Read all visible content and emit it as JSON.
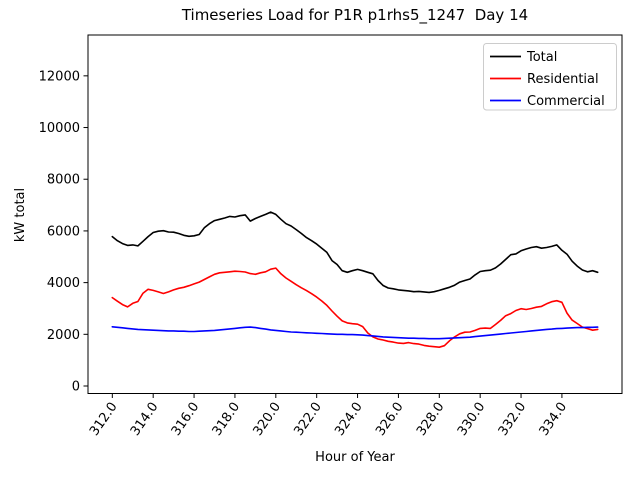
{
  "window": {
    "title": "Timeseries Load for P1R p1rhs5_1247  Day 14"
  },
  "chart_data": {
    "type": "line",
    "title": "Timeseries Load for P1R p1rhs5_1247  Day 14",
    "xlabel": "Hour of Year",
    "ylabel": "kW total",
    "xlim": [
      310.81,
      336.94
    ],
    "ylim": [
      -290,
      13580
    ],
    "grid": false,
    "legend_position": "upper right",
    "background_color": "#ffffff",
    "spine_color": "#000000",
    "x_ticks": [
      312,
      314,
      316,
      318,
      320,
      322,
      324,
      326,
      328,
      330,
      332,
      334
    ],
    "x_tick_labels": [
      "312.0",
      "314.0",
      "316.0",
      "318.0",
      "320.0",
      "322.0",
      "324.0",
      "326.0",
      "328.0",
      "330.0",
      "332.0",
      "334.0"
    ],
    "x_tick_rotation_deg": 55,
    "y_ticks": [
      0,
      2000,
      4000,
      6000,
      8000,
      10000,
      12000
    ],
    "y_tick_labels": [
      "0",
      "2000",
      "4000",
      "6000",
      "8000",
      "10000",
      "12000"
    ],
    "x": [
      312.0,
      312.25,
      312.5,
      312.75,
      313.0,
      313.25,
      313.5,
      313.75,
      314.0,
      314.25,
      314.5,
      314.75,
      315.0,
      315.25,
      315.5,
      315.75,
      316.0,
      316.25,
      316.5,
      316.75,
      317.0,
      317.25,
      317.5,
      317.75,
      318.0,
      318.25,
      318.5,
      318.75,
      319.0,
      319.25,
      319.5,
      319.75,
      320.0,
      320.25,
      320.5,
      320.75,
      321.0,
      321.25,
      321.5,
      321.75,
      322.0,
      322.25,
      322.5,
      322.75,
      323.0,
      323.25,
      323.5,
      323.75,
      324.0,
      324.25,
      324.5,
      324.75,
      325.0,
      325.25,
      325.5,
      325.75,
      326.0,
      326.25,
      326.5,
      326.75,
      327.0,
      327.25,
      327.5,
      327.75,
      328.0,
      328.25,
      328.5,
      328.75,
      329.0,
      329.25,
      329.5,
      329.75,
      330.0,
      330.25,
      330.5,
      330.75,
      331.0,
      331.25,
      331.5,
      331.75,
      332.0,
      332.25,
      332.5,
      332.75,
      333.0,
      333.25,
      333.5,
      333.75,
      334.0,
      334.25,
      334.5,
      334.75,
      335.0,
      335.25,
      335.5,
      335.75
    ],
    "series": [
      {
        "name": "Total",
        "color": "#000000",
        "values": [
          5780,
          5620,
          5510,
          5440,
          5460,
          5420,
          5600,
          5780,
          5940,
          5990,
          6010,
          5960,
          5950,
          5900,
          5830,
          5790,
          5810,
          5860,
          6120,
          6280,
          6400,
          6450,
          6500,
          6560,
          6540,
          6590,
          6620,
          6380,
          6480,
          6560,
          6640,
          6730,
          6640,
          6450,
          6280,
          6190,
          6050,
          5900,
          5740,
          5620,
          5490,
          5330,
          5170,
          4850,
          4700,
          4460,
          4400,
          4460,
          4510,
          4460,
          4400,
          4340,
          4080,
          3890,
          3790,
          3760,
          3720,
          3700,
          3680,
          3650,
          3660,
          3640,
          3620,
          3650,
          3700,
          3760,
          3820,
          3900,
          4020,
          4080,
          4140,
          4300,
          4430,
          4460,
          4480,
          4570,
          4720,
          4900,
          5080,
          5110,
          5230,
          5300,
          5360,
          5390,
          5330,
          5360,
          5400,
          5460,
          5250,
          5100,
          4830,
          4640,
          4490,
          4420,
          4460,
          4400
        ]
      },
      {
        "name": "Residential",
        "color": "#ff0000",
        "values": [
          3420,
          3280,
          3150,
          3060,
          3200,
          3270,
          3590,
          3740,
          3700,
          3640,
          3580,
          3640,
          3720,
          3780,
          3820,
          3880,
          3950,
          4020,
          4120,
          4220,
          4320,
          4380,
          4400,
          4420,
          4440,
          4430,
          4410,
          4350,
          4320,
          4380,
          4420,
          4520,
          4560,
          4340,
          4180,
          4050,
          3920,
          3800,
          3690,
          3570,
          3440,
          3290,
          3120,
          2900,
          2700,
          2520,
          2440,
          2410,
          2390,
          2300,
          2050,
          1900,
          1820,
          1780,
          1730,
          1700,
          1660,
          1650,
          1680,
          1640,
          1620,
          1570,
          1540,
          1520,
          1500,
          1560,
          1750,
          1900,
          2020,
          2080,
          2090,
          2150,
          2230,
          2240,
          2230,
          2380,
          2540,
          2720,
          2800,
          2920,
          2990,
          2960,
          3000,
          3050,
          3080,
          3180,
          3260,
          3300,
          3240,
          2820,
          2550,
          2420,
          2280,
          2220,
          2160,
          2190
        ]
      },
      {
        "name": "Commercial",
        "color": "#0000ff",
        "values": [
          2290,
          2270,
          2250,
          2230,
          2210,
          2190,
          2180,
          2170,
          2160,
          2150,
          2140,
          2130,
          2130,
          2120,
          2120,
          2110,
          2110,
          2120,
          2130,
          2140,
          2150,
          2170,
          2190,
          2210,
          2230,
          2250,
          2270,
          2280,
          2260,
          2230,
          2200,
          2170,
          2150,
          2130,
          2110,
          2090,
          2080,
          2070,
          2060,
          2050,
          2040,
          2030,
          2020,
          2010,
          2000,
          2000,
          1990,
          1990,
          1980,
          1970,
          1950,
          1940,
          1920,
          1900,
          1890,
          1880,
          1870,
          1860,
          1850,
          1850,
          1840,
          1840,
          1830,
          1830,
          1830,
          1840,
          1850,
          1860,
          1870,
          1880,
          1890,
          1910,
          1930,
          1950,
          1970,
          1990,
          2010,
          2030,
          2050,
          2070,
          2090,
          2110,
          2130,
          2150,
          2170,
          2190,
          2200,
          2220,
          2230,
          2240,
          2250,
          2260,
          2260,
          2270,
          2270,
          2280
        ]
      }
    ],
    "legend": {
      "entries": [
        "Total",
        "Residential",
        "Commercial"
      ],
      "border_color": "#cccccc"
    }
  }
}
